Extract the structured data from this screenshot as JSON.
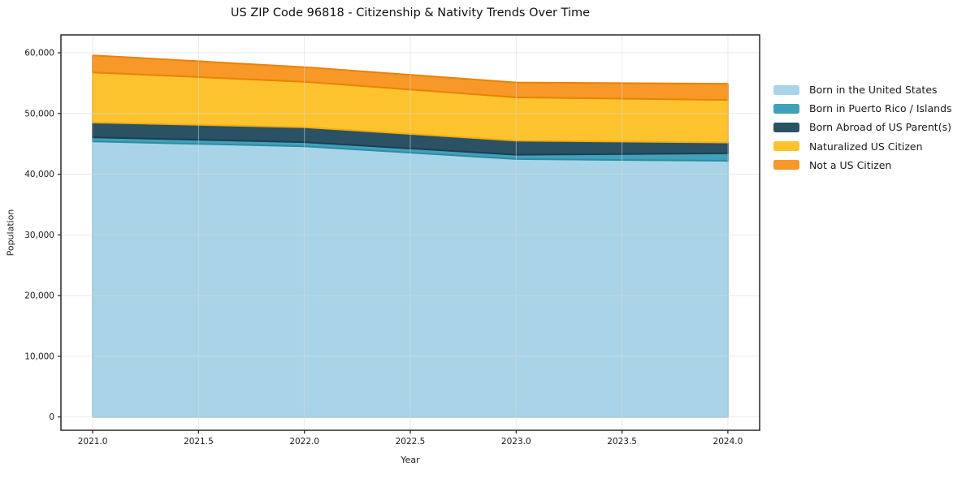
{
  "figure": {
    "background": "#ffffff",
    "plot_border_color": "#1a1a1a",
    "grid_color": "#d9d9d9",
    "tick_color": "#1a1a1a",
    "text_color": "#1a1a1a"
  },
  "chart_data": {
    "type": "area",
    "stacked": true,
    "title": "US ZIP Code 96818 - Citizenship & Nativity Trends Over Time",
    "xlabel": "Year",
    "ylabel": "Population",
    "x": [
      2021,
      2022,
      2023,
      2024
    ],
    "series": [
      {
        "name": "Born in the United States",
        "color": "#A9D4E8",
        "edge": "#90C3DA",
        "values": [
          45400,
          44600,
          42500,
          42200
        ]
      },
      {
        "name": "Born in Puerto Rico / Islands",
        "color": "#3FA2BA",
        "edge": "#2D8CA3",
        "values": [
          670,
          680,
          700,
          1240
        ]
      },
      {
        "name": "Born Abroad of US Parent(s)",
        "color": "#2A5164",
        "edge": "#1E3E4F",
        "values": [
          2450,
          2460,
          2330,
          1780
        ]
      },
      {
        "name": "Naturalized US Citizen",
        "color": "#FDC32E",
        "edge": "#F0AD14",
        "values": [
          8250,
          7490,
          7130,
          7010
        ]
      },
      {
        "name": "Not a US Citizen",
        "color": "#F89828",
        "edge": "#E98207",
        "values": [
          2810,
          2410,
          2450,
          2680
        ]
      }
    ],
    "x_ticks": [
      2021.0,
      2021.5,
      2022.0,
      2022.5,
      2023.0,
      2023.5,
      2024.0
    ],
    "x_tick_labels": [
      "2021.0",
      "2021.5",
      "2022.0",
      "2022.5",
      "2023.0",
      "2023.5",
      "2024.0"
    ],
    "y_ticks": [
      0,
      10000,
      20000,
      30000,
      40000,
      50000,
      60000
    ],
    "y_tick_labels": [
      "0",
      "10,000",
      "20,000",
      "30,000",
      "40,000",
      "50,000",
      "60,000"
    ],
    "xlim": [
      2020.85,
      2024.15
    ],
    "ylim": [
      -2200,
      62950
    ],
    "grid": true,
    "legend_position": "right"
  }
}
